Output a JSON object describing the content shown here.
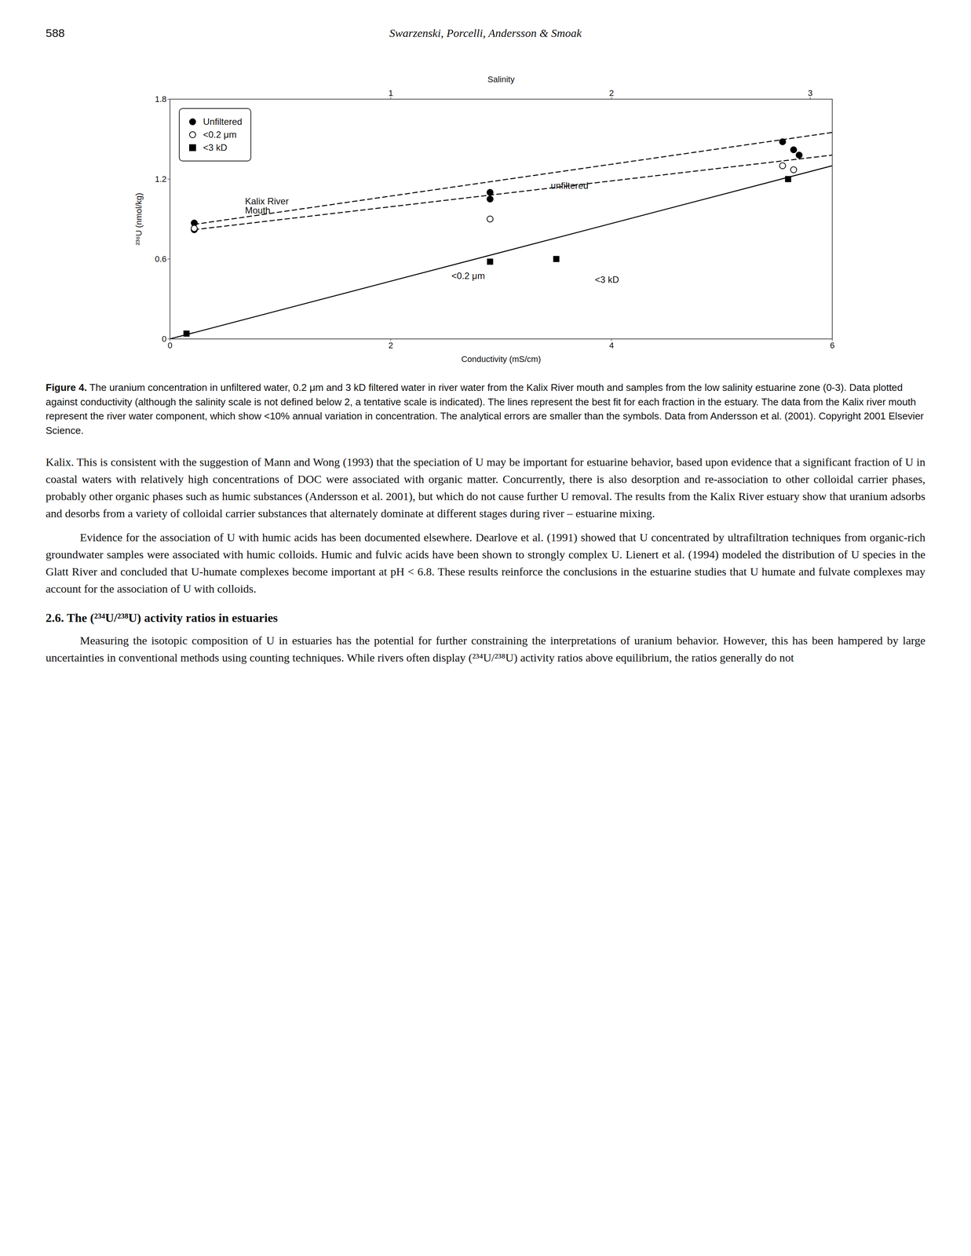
{
  "page_number": "588",
  "header": "Swarzenski, Porcelli, Andersson & Smoak",
  "chart_data": {
    "type": "scatter",
    "xlabel": "Conductivity (mS/cm)",
    "ylabel": "²³⁸U (nmol/kg)",
    "x2label": "Salinity",
    "xlim": [
      0,
      6
    ],
    "ylim": [
      0,
      1.8
    ],
    "xticks": [
      0,
      2,
      4,
      6
    ],
    "yticks": [
      0,
      0.6,
      1.2,
      1.8
    ],
    "x2ticks": [
      {
        "value": 2.0,
        "label": "1"
      },
      {
        "value": 4.0,
        "label": "2"
      },
      {
        "value": 5.8,
        "label": "3"
      }
    ],
    "grid": false,
    "legend": "upper left",
    "series": [
      {
        "name": "Unfiltered",
        "type": "scatter",
        "marker": "filled circle",
        "color": "black",
        "x": [
          0.22,
          0.22,
          2.9,
          2.9,
          5.55,
          5.65,
          5.7
        ],
        "values": [
          0.87,
          0.82,
          1.1,
          1.05,
          1.48,
          1.42,
          1.38
        ]
      },
      {
        "name": "<0.2 μm",
        "type": "scatter",
        "marker": "open circle",
        "color": "black",
        "x": [
          0.22,
          2.9,
          5.55,
          5.65
        ],
        "values": [
          0.83,
          0.9,
          1.3,
          1.27
        ]
      },
      {
        "name": "<3 kD",
        "type": "scatter",
        "marker": "filled square",
        "color": "black",
        "x": [
          0.15,
          2.9,
          3.5,
          5.6
        ],
        "values": [
          0.04,
          0.58,
          0.6,
          1.2
        ]
      },
      {
        "type": "line",
        "line_style": "dashed",
        "color": "black",
        "x": [
          0.22,
          6.0
        ],
        "values": [
          0.86,
          1.55
        ]
      },
      {
        "type": "line",
        "line_style": "dashed",
        "color": "black",
        "x": [
          0.22,
          6.0
        ],
        "values": [
          0.82,
          1.38
        ]
      },
      {
        "type": "line",
        "line_style": "solid",
        "color": "black",
        "x": [
          0.0,
          6.0
        ],
        "values": [
          0.0,
          1.3
        ]
      }
    ],
    "annotations": [
      {
        "text": "Kalix River\nMouth",
        "x": 0.68,
        "y": 1.06
      },
      {
        "text": "unfiltered",
        "x": 3.45,
        "y": 1.175
      },
      {
        "text": "<0.2 μm",
        "x": 2.55,
        "y": 0.5
      },
      {
        "text": "<3 kD",
        "x": 3.85,
        "y": 0.47
      }
    ]
  },
  "caption_label": "Figure 4.",
  "caption": " The uranium concentration in unfiltered water, 0.2 μm and 3 kD filtered water in river water from the Kalix River mouth and samples from the low salinity estuarine zone (0-3). Data plotted against conductivity (although the salinity scale is not defined below 2, a tentative scale is indicated). The lines represent the best fit for each fraction in the estuary. The data from the Kalix river mouth represent the river water component, which show <10% annual variation in concentration. The analytical errors are smaller than the symbols. Data from Andersson et al. (2001). Copyright 2001 Elsevier Science.",
  "body_before_section": [
    "Kalix. This is consistent with the suggestion of Mann and Wong (1993) that the speciation of U may be important for estuarine behavior, based upon evidence that a significant fraction of U in coastal waters with relatively high concentrations of DOC were associated with organic matter. Concurrently, there is also desorption and re-association to other colloidal carrier phases, probably other organic phases such as humic substances (Andersson et al. 2001), but which do not cause further U removal. The results from the Kalix River estuary show that uranium adsorbs and desorbs from a variety of colloidal carrier substances that alternately dominate at different stages during river – estuarine mixing.",
    "Evidence for the association of U with humic acids has been documented elsewhere. Dearlove et al. (1991) showed that U concentrated by ultrafiltration techniques from organic-rich groundwater samples were associated with humic colloids. Humic and fulvic acids have been shown to strongly complex U. Lienert et al. (1994) modeled the distribution of U species in the Glatt River and concluded that U-humate complexes become important at pH < 6.8. These results reinforce the conclusions in the estuarine studies that U humate and fulvate complexes may account for the association of U with colloids."
  ],
  "section_heading": "2.6. The (²³⁴U/²³⁸U) activity ratios in estuaries",
  "body_after_section": [
    "Measuring the isotopic composition of U in estuaries has the potential for further constraining the interpretations of uranium behavior. However, this has been hampered by large uncertainties in conventional methods using counting techniques. While rivers often display (²³⁴U/²³⁸U) activity ratios above equilibrium, the ratios generally do not"
  ]
}
